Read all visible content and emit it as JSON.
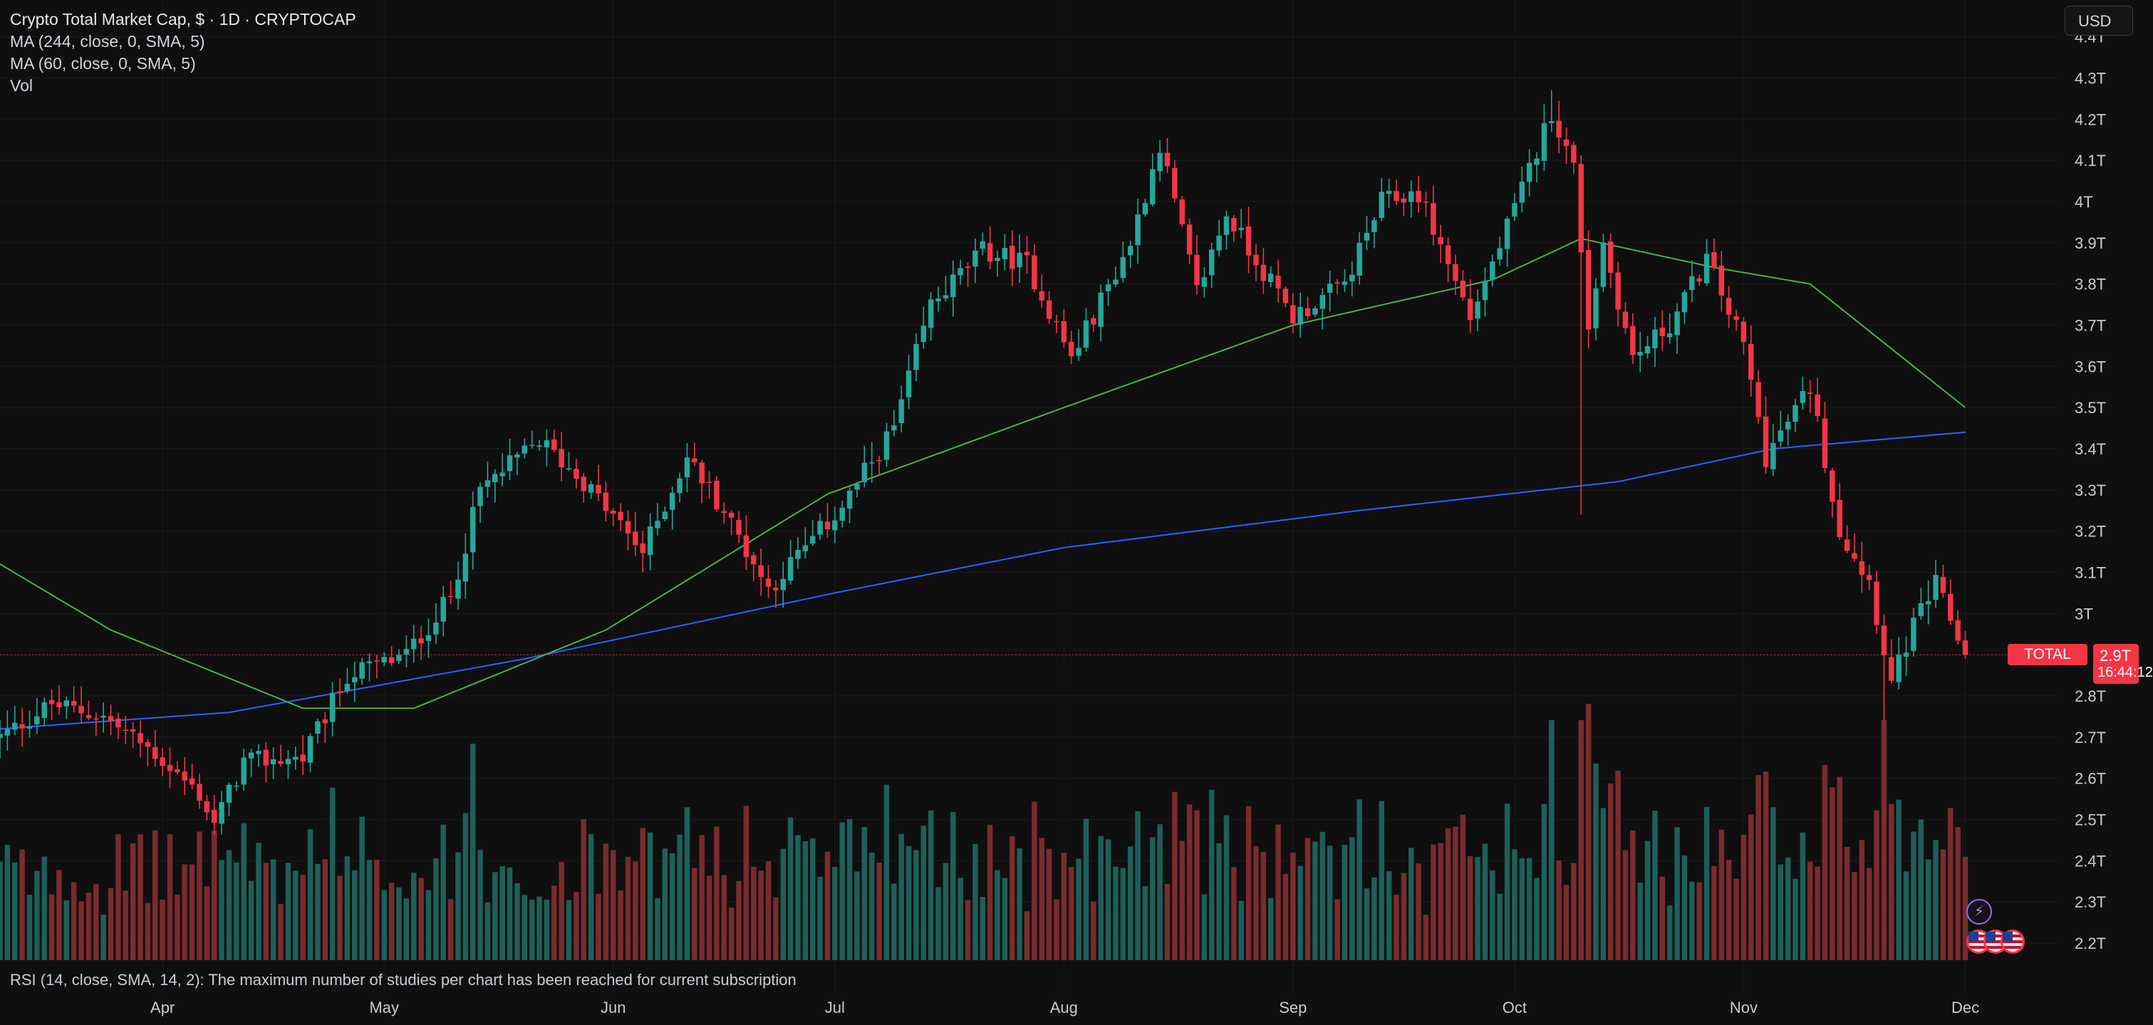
{
  "legend": {
    "title": "Crypto Total Market Cap, $ · 1D · CRYPTOCAP",
    "ma1": "MA (244, close, 0, SMA, 5)",
    "ma2": "MA (60, close, 0, SMA, 5)",
    "vol": "Vol"
  },
  "currency_button": "USD",
  "rsi_message": "RSI (14, close, SMA, 14, 2): The maximum number of studies per chart has been reached for current subscription",
  "price_tag": {
    "symbol": "TOTAL",
    "value": "2.9T",
    "countdown": "16:44:12"
  },
  "badges": [
    "bolt-icon",
    "us-flag-icon",
    "us-flag-icon",
    "us-flag-icon"
  ],
  "colors": {
    "up": "#26a69a",
    "down": "#f23645",
    "up_vol": "#1e5f5a",
    "down_vol": "#7a2b2e",
    "ma244": "#2962ff",
    "ma60": "#4caf50",
    "background": "#0f0f0f"
  },
  "chart_data": {
    "type": "candlestick",
    "x_axis": {
      "type": "date",
      "range": [
        "2025-03-10",
        "2025-12-05"
      ],
      "tick_labels": [
        "Apr",
        "May",
        "Jun",
        "Jul",
        "Aug",
        "Sep",
        "Oct",
        "Nov",
        "Dec"
      ],
      "tick_dates": [
        "2025-04-01",
        "2025-05-01",
        "2025-06-01",
        "2025-07-01",
        "2025-08-01",
        "2025-09-01",
        "2025-10-01",
        "2025-11-01",
        "2025-12-01"
      ]
    },
    "y_axis": {
      "unit": "T",
      "range": [
        2.15,
        4.42
      ],
      "tick_labels": [
        "2.2T",
        "2.3T",
        "2.4T",
        "2.5T",
        "2.6T",
        "2.7T",
        "2.8T",
        "2.9T",
        "3T",
        "3.1T",
        "3.2T",
        "3.3T",
        "3.4T",
        "3.5T",
        "3.6T",
        "3.7T",
        "3.8T",
        "3.9T",
        "4T",
        "4.1T",
        "4.2T",
        "4.3T",
        "4.4T"
      ],
      "tick_values": [
        2.2,
        2.3,
        2.4,
        2.5,
        2.6,
        2.7,
        2.8,
        2.9,
        3.0,
        3.1,
        3.2,
        3.3,
        3.4,
        3.5,
        3.6,
        3.7,
        3.8,
        3.9,
        4.0,
        4.1,
        4.2,
        4.3,
        4.4
      ]
    },
    "close_anchors": [
      [
        "2025-03-10",
        2.7
      ],
      [
        "2025-03-17",
        2.78
      ],
      [
        "2025-03-24",
        2.75
      ],
      [
        "2025-03-31",
        2.66
      ],
      [
        "2025-04-06",
        2.56
      ],
      [
        "2025-04-08",
        2.49
      ],
      [
        "2025-04-12",
        2.64
      ],
      [
        "2025-04-20",
        2.65
      ],
      [
        "2025-04-26",
        2.85
      ],
      [
        "2025-05-04",
        2.9
      ],
      [
        "2025-05-10",
        3.04
      ],
      [
        "2025-05-14",
        3.3
      ],
      [
        "2025-05-22",
        3.42
      ],
      [
        "2025-05-28",
        3.32
      ],
      [
        "2025-06-05",
        3.15
      ],
      [
        "2025-06-11",
        3.38
      ],
      [
        "2025-06-16",
        3.25
      ],
      [
        "2025-06-22",
        3.06
      ],
      [
        "2025-07-02",
        3.26
      ],
      [
        "2025-07-09",
        3.45
      ],
      [
        "2025-07-14",
        3.75
      ],
      [
        "2025-07-21",
        3.88
      ],
      [
        "2025-07-27",
        3.85
      ],
      [
        "2025-08-02",
        3.62
      ],
      [
        "2025-08-10",
        3.9
      ],
      [
        "2025-08-14",
        4.14
      ],
      [
        "2025-08-19",
        3.78
      ],
      [
        "2025-08-23",
        3.97
      ],
      [
        "2025-09-01",
        3.72
      ],
      [
        "2025-09-08",
        3.8
      ],
      [
        "2025-09-13",
        4.0
      ],
      [
        "2025-09-18",
        4.02
      ],
      [
        "2025-09-25",
        3.72
      ],
      [
        "2025-10-01",
        3.98
      ],
      [
        "2025-10-06",
        4.22
      ],
      [
        "2025-10-09",
        4.08
      ],
      [
        "2025-10-11",
        3.7
      ],
      [
        "2025-10-13",
        3.9
      ],
      [
        "2025-10-17",
        3.62
      ],
      [
        "2025-10-22",
        3.7
      ],
      [
        "2025-10-27",
        3.86
      ],
      [
        "2025-11-01",
        3.65
      ],
      [
        "2025-11-04",
        3.38
      ],
      [
        "2025-11-10",
        3.55
      ],
      [
        "2025-11-14",
        3.2
      ],
      [
        "2025-11-18",
        3.08
      ],
      [
        "2025-11-21",
        2.83
      ],
      [
        "2025-11-24",
        2.97
      ],
      [
        "2025-11-27",
        3.07
      ],
      [
        "2025-12-01",
        2.9
      ]
    ],
    "last_close": 2.9,
    "ma244_anchors": [
      [
        "2025-03-10",
        2.72
      ],
      [
        "2025-04-10",
        2.76
      ],
      [
        "2025-05-20",
        2.89
      ],
      [
        "2025-07-01",
        3.05
      ],
      [
        "2025-08-01",
        3.16
      ],
      [
        "2025-09-10",
        3.25
      ],
      [
        "2025-10-15",
        3.32
      ],
      [
        "2025-11-05",
        3.4
      ],
      [
        "2025-12-01",
        3.44
      ]
    ],
    "ma60_anchors": [
      [
        "2025-03-10",
        3.12
      ],
      [
        "2025-03-25",
        2.96
      ],
      [
        "2025-04-20",
        2.77
      ],
      [
        "2025-05-05",
        2.77
      ],
      [
        "2025-05-31",
        2.96
      ],
      [
        "2025-06-30",
        3.29
      ],
      [
        "2025-08-01",
        3.5
      ],
      [
        "2025-09-01",
        3.7
      ],
      [
        "2025-09-28",
        3.81
      ],
      [
        "2025-10-10",
        3.91
      ],
      [
        "2025-10-28",
        3.84
      ],
      [
        "2025-11-10",
        3.8
      ],
      [
        "2025-12-01",
        3.5
      ]
    ]
  }
}
